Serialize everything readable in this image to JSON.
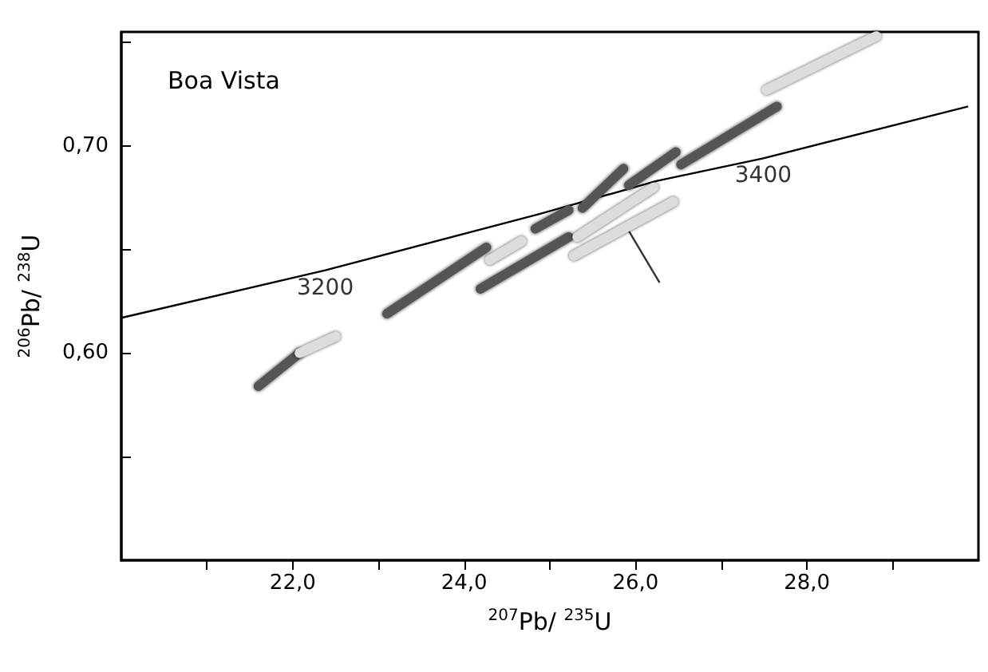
{
  "chart_data": {
    "type": "line",
    "title": "Boa Vista",
    "xlabel": "$^{207}$Pb/ $^{235}$U",
    "ylabel": "$^{206}$Pb/ $^{238}$U",
    "xlim": [
      20,
      30
    ],
    "ylim": [
      0.5,
      0.755
    ],
    "xticks": [
      {
        "value": 21,
        "label": null
      },
      {
        "value": 22,
        "label": "22,0"
      },
      {
        "value": 23,
        "label": null
      },
      {
        "value": 24,
        "label": "24,0"
      },
      {
        "value": 25,
        "label": null
      },
      {
        "value": 26,
        "label": "26,0"
      },
      {
        "value": 27,
        "label": null
      },
      {
        "value": 28,
        "label": "28,0"
      },
      {
        "value": 29,
        "label": null
      }
    ],
    "yticks": [
      {
        "value": 0.55,
        "label": null
      },
      {
        "value": 0.6,
        "label": "0,60"
      },
      {
        "value": 0.65,
        "label": null
      },
      {
        "value": 0.7,
        "label": "0,70"
      },
      {
        "value": 0.75,
        "label": null
      }
    ],
    "grid": false,
    "marker": "none",
    "annotations": [
      {
        "text": "3200",
        "x": 22.38,
        "y": 0.64
      },
      {
        "text": "3400",
        "x": 27.49,
        "y": 0.694
      }
    ],
    "series": [
      {
        "color": "#000000",
        "line_style": "solid",
        "x": [
          20.0,
          22.38,
          24.87,
          26.24,
          27.49,
          29.88
        ],
        "values": [
          0.617,
          0.64,
          0.667,
          0.683,
          0.694,
          0.719
        ]
      },
      {
        "color": "#555555",
        "x": [
          21.6,
          22.08
        ],
        "values": [
          0.584,
          0.6
        ]
      },
      {
        "color": "#dddddd",
        "x": [
          22.08,
          22.5
        ],
        "values": [
          0.6,
          0.608
        ]
      },
      {
        "color": "#555555",
        "x": [
          23.1,
          24.26
        ],
        "values": [
          0.619,
          0.651
        ]
      },
      {
        "color": "#dddddd",
        "x": [
          24.3,
          24.67
        ],
        "values": [
          0.645,
          0.654
        ]
      },
      {
        "color": "#555555",
        "x": [
          24.19,
          25.22
        ],
        "values": [
          0.631,
          0.656
        ]
      },
      {
        "color": "#555555",
        "x": [
          24.83,
          25.22
        ],
        "values": [
          0.66,
          0.669
        ]
      },
      {
        "color": "#555555",
        "x": [
          25.38,
          25.86
        ],
        "values": [
          0.67,
          0.689
        ]
      },
      {
        "color": "#555555",
        "x": [
          25.92,
          26.47
        ],
        "values": [
          0.681,
          0.697
        ]
      },
      {
        "color": "#dddddd",
        "x": [
          25.32,
          26.21
        ],
        "values": [
          0.656,
          0.68
        ]
      },
      {
        "color": "#dddddd",
        "x": [
          25.28,
          26.44
        ],
        "values": [
          0.647,
          0.673
        ]
      },
      {
        "color": "#555555",
        "x": [
          26.53,
          27.65
        ],
        "values": [
          0.691,
          0.719
        ]
      },
      {
        "color": "#dddddd",
        "x": [
          27.53,
          28.81
        ],
        "values": [
          0.727,
          0.753
        ]
      },
      {
        "color": "#333333",
        "line_style": "solid",
        "x": [
          25.92,
          26.28
        ],
        "values": [
          0.659,
          0.634
        ]
      }
    ]
  }
}
